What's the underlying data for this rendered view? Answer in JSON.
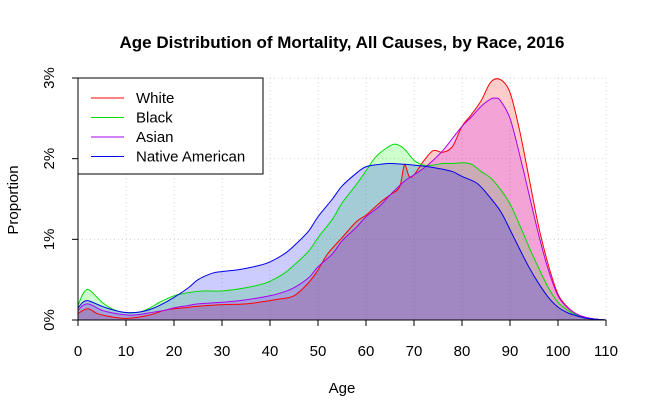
{
  "chart_data": {
    "type": "area",
    "title": "Age Distribution of Mortality, All Causes, by Race, 2016",
    "xlabel": "Age",
    "ylabel": "Proportion",
    "xlim": [
      0,
      110
    ],
    "ylim": [
      0,
      0.03
    ],
    "xticks": [
      0,
      10,
      20,
      30,
      40,
      50,
      60,
      70,
      80,
      90,
      100,
      110
    ],
    "yticks": [
      0,
      0.01,
      0.02,
      0.03
    ],
    "ytick_labels": [
      "0%",
      "1%",
      "2%",
      "3%"
    ],
    "grid": true,
    "legend_position": "top-left",
    "series": [
      {
        "name": "White",
        "color": "#ff0000",
        "fill": "rgba(255,0,0,0.2)",
        "points": [
          [
            0,
            0.0008
          ],
          [
            2,
            0.0014
          ],
          [
            4,
            0.0008
          ],
          [
            6,
            0.0005
          ],
          [
            8,
            0.0003
          ],
          [
            10,
            0.0002
          ],
          [
            12,
            0.0003
          ],
          [
            14,
            0.0005
          ],
          [
            16,
            0.0008
          ],
          [
            18,
            0.0012
          ],
          [
            20,
            0.0014
          ],
          [
            22,
            0.0015
          ],
          [
            25,
            0.0017
          ],
          [
            30,
            0.0019
          ],
          [
            35,
            0.002
          ],
          [
            40,
            0.0024
          ],
          [
            42,
            0.0026
          ],
          [
            45,
            0.003
          ],
          [
            48,
            0.0046
          ],
          [
            50,
            0.0062
          ],
          [
            52,
            0.0082
          ],
          [
            55,
            0.0102
          ],
          [
            58,
            0.0122
          ],
          [
            60,
            0.013
          ],
          [
            63,
            0.0146
          ],
          [
            65,
            0.0155
          ],
          [
            67,
            0.0165
          ],
          [
            68,
            0.0192
          ],
          [
            69,
            0.0178
          ],
          [
            70,
            0.018
          ],
          [
            72,
            0.0197
          ],
          [
            74,
            0.021
          ],
          [
            76,
            0.0208
          ],
          [
            78,
            0.0215
          ],
          [
            80,
            0.024
          ],
          [
            82,
            0.0255
          ],
          [
            84,
            0.0272
          ],
          [
            86,
            0.0295
          ],
          [
            88,
            0.0298
          ],
          [
            90,
            0.0282
          ],
          [
            92,
            0.0235
          ],
          [
            94,
            0.0175
          ],
          [
            96,
            0.0115
          ],
          [
            98,
            0.0068
          ],
          [
            100,
            0.0032
          ],
          [
            102,
            0.0016
          ],
          [
            104,
            0.0007
          ],
          [
            106,
            0.0003
          ],
          [
            108,
            0.0001
          ],
          [
            110,
            0
          ]
        ]
      },
      {
        "name": "Black",
        "color": "#00dd00",
        "fill": "rgba(0,255,0,0.2)",
        "points": [
          [
            0,
            0.0018
          ],
          [
            1,
            0.0032
          ],
          [
            2,
            0.0038
          ],
          [
            3,
            0.0034
          ],
          [
            5,
            0.0022
          ],
          [
            7,
            0.0014
          ],
          [
            9,
            0.001
          ],
          [
            11,
            0.0009
          ],
          [
            13,
            0.001
          ],
          [
            15,
            0.0015
          ],
          [
            17,
            0.0022
          ],
          [
            20,
            0.003
          ],
          [
            23,
            0.0034
          ],
          [
            26,
            0.0036
          ],
          [
            30,
            0.0036
          ],
          [
            35,
            0.004
          ],
          [
            38,
            0.0044
          ],
          [
            40,
            0.0048
          ],
          [
            43,
            0.0058
          ],
          [
            45,
            0.0068
          ],
          [
            48,
            0.0085
          ],
          [
            50,
            0.0102
          ],
          [
            53,
            0.0125
          ],
          [
            55,
            0.0145
          ],
          [
            58,
            0.0168
          ],
          [
            60,
            0.0185
          ],
          [
            62,
            0.0202
          ],
          [
            64,
            0.0212
          ],
          [
            66,
            0.0218
          ],
          [
            68,
            0.0212
          ],
          [
            70,
            0.0198
          ],
          [
            72,
            0.0192
          ],
          [
            74,
            0.0192
          ],
          [
            76,
            0.0194
          ],
          [
            78,
            0.0194
          ],
          [
            80,
            0.0195
          ],
          [
            82,
            0.0193
          ],
          [
            84,
            0.0184
          ],
          [
            86,
            0.0176
          ],
          [
            88,
            0.0162
          ],
          [
            90,
            0.0144
          ],
          [
            92,
            0.0118
          ],
          [
            94,
            0.009
          ],
          [
            96,
            0.0064
          ],
          [
            98,
            0.004
          ],
          [
            100,
            0.0022
          ],
          [
            102,
            0.0012
          ],
          [
            104,
            0.0006
          ],
          [
            106,
            0.0002
          ],
          [
            108,
            0.0001
          ],
          [
            110,
            0
          ]
        ]
      },
      {
        "name": "Asian",
        "color": "#aa00ee",
        "fill": "rgba(200,0,255,0.2)",
        "points": [
          [
            0,
            0.0012
          ],
          [
            1,
            0.0018
          ],
          [
            2,
            0.002
          ],
          [
            3,
            0.0018
          ],
          [
            5,
            0.0012
          ],
          [
            7,
            0.0009
          ],
          [
            9,
            0.0007
          ],
          [
            11,
            0.0006
          ],
          [
            13,
            0.0007
          ],
          [
            15,
            0.0009
          ],
          [
            18,
            0.0012
          ],
          [
            20,
            0.0015
          ],
          [
            23,
            0.0018
          ],
          [
            25,
            0.002
          ],
          [
            30,
            0.0022
          ],
          [
            35,
            0.0025
          ],
          [
            40,
            0.003
          ],
          [
            43,
            0.0035
          ],
          [
            45,
            0.004
          ],
          [
            48,
            0.0052
          ],
          [
            50,
            0.0066
          ],
          [
            53,
            0.0082
          ],
          [
            55,
            0.0098
          ],
          [
            58,
            0.0115
          ],
          [
            60,
            0.0128
          ],
          [
            63,
            0.0142
          ],
          [
            65,
            0.0155
          ],
          [
            68,
            0.0172
          ],
          [
            70,
            0.018
          ],
          [
            72,
            0.0188
          ],
          [
            74,
            0.0198
          ],
          [
            76,
            0.021
          ],
          [
            78,
            0.0225
          ],
          [
            80,
            0.024
          ],
          [
            82,
            0.0252
          ],
          [
            84,
            0.0265
          ],
          [
            86,
            0.0274
          ],
          [
            87,
            0.0275
          ],
          [
            88,
            0.0272
          ],
          [
            90,
            0.025
          ],
          [
            92,
            0.0205
          ],
          [
            94,
            0.0155
          ],
          [
            96,
            0.0105
          ],
          [
            98,
            0.0062
          ],
          [
            100,
            0.003
          ],
          [
            102,
            0.0015
          ],
          [
            104,
            0.0007
          ],
          [
            106,
            0.0003
          ],
          [
            108,
            0.0001
          ],
          [
            110,
            0
          ]
        ]
      },
      {
        "name": "Native American",
        "color": "#0000ee",
        "fill": "rgba(0,0,255,0.2)",
        "points": [
          [
            0,
            0.0015
          ],
          [
            1,
            0.0022
          ],
          [
            2,
            0.0024
          ],
          [
            3,
            0.0022
          ],
          [
            5,
            0.0017
          ],
          [
            7,
            0.0013
          ],
          [
            9,
            0.001
          ],
          [
            11,
            0.0009
          ],
          [
            13,
            0.001
          ],
          [
            15,
            0.0013
          ],
          [
            17,
            0.0018
          ],
          [
            20,
            0.0028
          ],
          [
            23,
            0.004
          ],
          [
            25,
            0.005
          ],
          [
            28,
            0.0058
          ],
          [
            30,
            0.006
          ],
          [
            33,
            0.0062
          ],
          [
            35,
            0.0064
          ],
          [
            38,
            0.0068
          ],
          [
            40,
            0.0072
          ],
          [
            43,
            0.0082
          ],
          [
            45,
            0.0092
          ],
          [
            48,
            0.011
          ],
          [
            50,
            0.0128
          ],
          [
            53,
            0.015
          ],
          [
            55,
            0.0166
          ],
          [
            58,
            0.0182
          ],
          [
            60,
            0.019
          ],
          [
            63,
            0.0193
          ],
          [
            65,
            0.0194
          ],
          [
            68,
            0.0193
          ],
          [
            70,
            0.0192
          ],
          [
            73,
            0.019
          ],
          [
            75,
            0.0188
          ],
          [
            78,
            0.0184
          ],
          [
            80,
            0.0178
          ],
          [
            83,
            0.017
          ],
          [
            85,
            0.0158
          ],
          [
            88,
            0.0135
          ],
          [
            90,
            0.0112
          ],
          [
            92,
            0.0088
          ],
          [
            94,
            0.0065
          ],
          [
            96,
            0.0045
          ],
          [
            98,
            0.0028
          ],
          [
            100,
            0.0016
          ],
          [
            102,
            0.0009
          ],
          [
            104,
            0.0005
          ],
          [
            106,
            0.0002
          ],
          [
            108,
            0.0001
          ],
          [
            110,
            0
          ]
        ]
      }
    ]
  }
}
